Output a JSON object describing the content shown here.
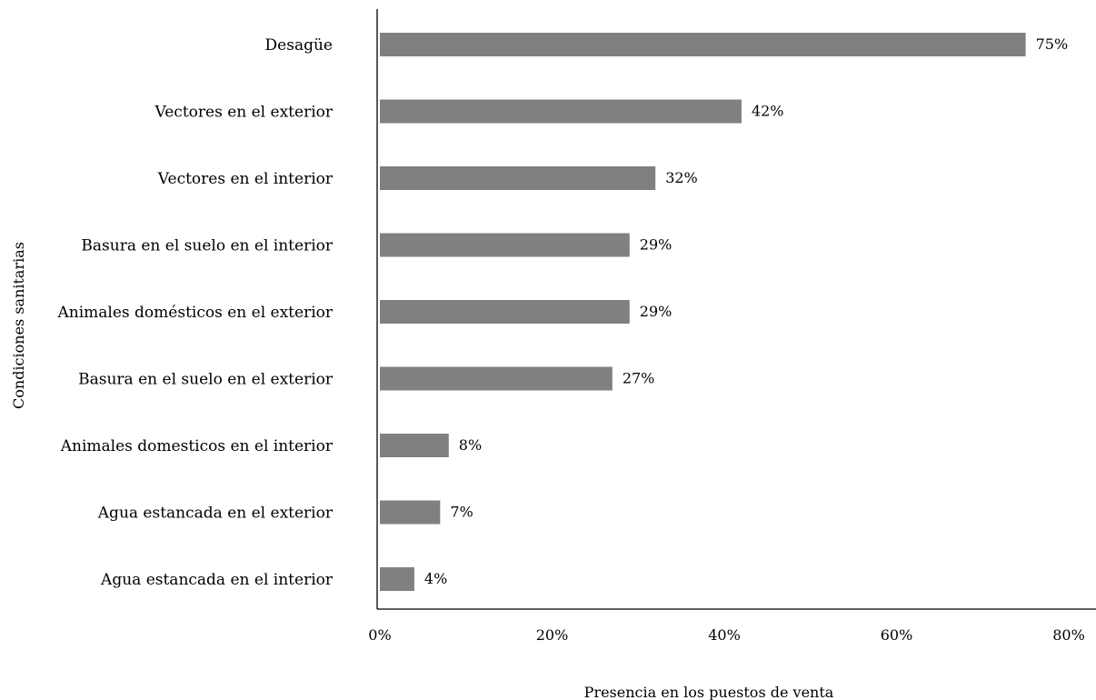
{
  "chart_data": {
    "type": "bar",
    "orientation": "horizontal",
    "categories": [
      "Desagüe",
      "Vectores en el exterior",
      "Vectores en el interior",
      "Basura en el suelo en el interior",
      "Animales domésticos en el exterior",
      "Basura en el suelo en el exterior",
      "Animales domesticos en el interior",
      "Agua estancada en el exterior",
      "Agua estancada en el interior"
    ],
    "values": [
      75,
      42,
      32,
      29,
      29,
      27,
      8,
      7,
      4
    ],
    "value_labels": [
      "75%",
      "42%",
      "32%",
      "29%",
      "29%",
      "27%",
      "8%",
      "7%",
      "4%"
    ],
    "xlim": [
      0,
      80
    ],
    "xticks": [
      0,
      20,
      40,
      60,
      80
    ],
    "xtick_labels": [
      "0%",
      "20%",
      "40%",
      "60%",
      "80%"
    ],
    "xlabel": "Presencia en los puestos de venta",
    "ylabel": "Condiciones sanitarias",
    "title": "",
    "grid": false,
    "legend": "none",
    "bar_color": "#808080",
    "axis_color": "#000000"
  }
}
